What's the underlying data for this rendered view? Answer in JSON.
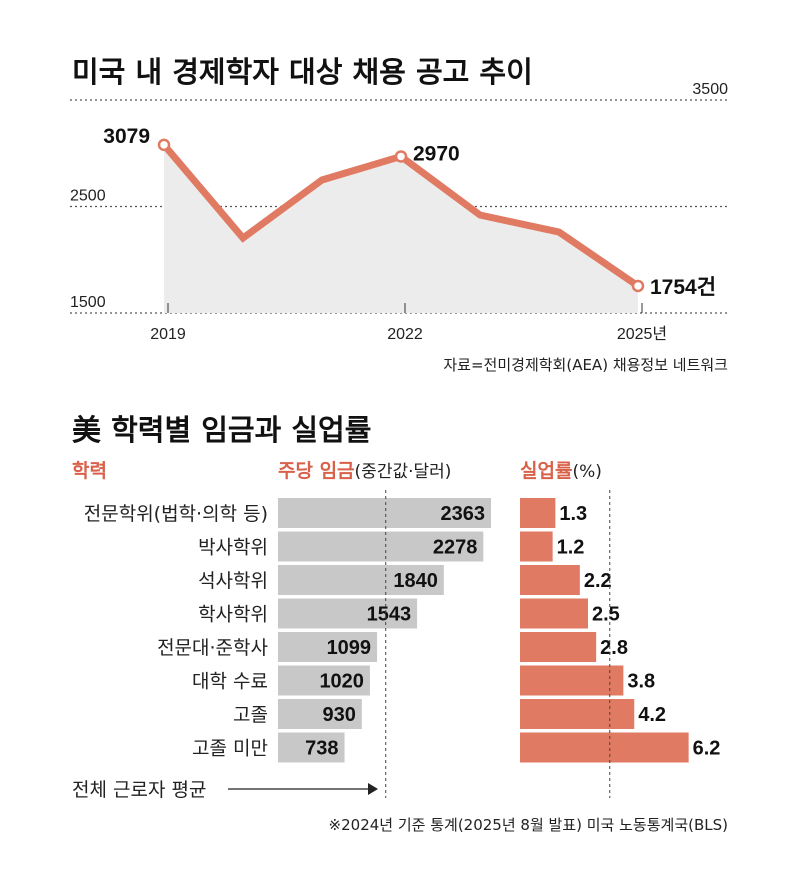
{
  "chart_data": [
    {
      "type": "area",
      "title": "미국 내 경제학자 대상 채용 공고 추이",
      "x": [
        2019,
        2020,
        2021,
        2022,
        2023,
        2024,
        2025
      ],
      "values": [
        3079,
        2204,
        2749,
        2970,
        2420,
        2260,
        1754
      ],
      "xtick_labels": [
        "2019",
        "2022",
        "2025년"
      ],
      "xtick_values": [
        2019,
        2022,
        2025
      ],
      "ytick_labels": [
        "1500",
        "2500",
        "3500"
      ],
      "ytick_values": [
        1500,
        2500,
        3500
      ],
      "ylim": [
        1500,
        3500
      ],
      "data_labels": [
        {
          "x": 2019,
          "text": "3079"
        },
        {
          "x": 2022,
          "text": "2970"
        },
        {
          "x": 2025,
          "text": "1754건"
        }
      ],
      "grid": "horizontal dotted",
      "source": "자료=전미경제학회(AEA) 채용정보 네트워크",
      "colors": {
        "line": "#e07a62",
        "fill": "#ececec"
      }
    },
    {
      "type": "bar",
      "orientation": "horizontal",
      "title": "美 학력별 임금과 실업률",
      "category_header": "학력",
      "categories": [
        "전문학위(법학·의학 등)",
        "박사학위",
        "석사학위",
        "학사학위",
        "전문대·준학사",
        "대학 수료",
        "고졸",
        "고졸 미만"
      ],
      "series": [
        {
          "name": "주당 임금",
          "name_suffix": "(중간값·달러)",
          "values": [
            2363,
            2278,
            1840,
            1543,
            1099,
            1020,
            930,
            738
          ],
          "color": "#c8c8c8",
          "average": 1195
        },
        {
          "name": "실업률",
          "name_suffix": "(%)",
          "values": [
            1.3,
            1.2,
            2.2,
            2.5,
            2.8,
            3.8,
            4.2,
            6.2
          ],
          "labels": [
            "1.3",
            "1.2",
            "2.2",
            "2.5",
            "2.8",
            "3.8",
            "4.2",
            "6.2"
          ],
          "color": "#e07a62",
          "average": 3.3
        }
      ],
      "average_label": "전체 근로자 평균",
      "note": "※2024년 기준 통계(2025년 8월 발표) 미국 노동통계국(BLS)"
    }
  ]
}
